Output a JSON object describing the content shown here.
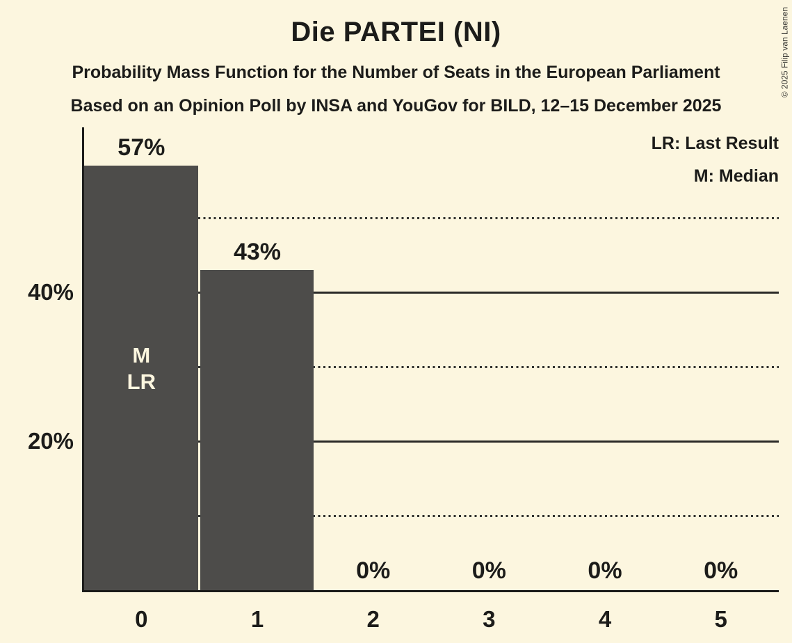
{
  "title": "Die PARTEI (NI)",
  "subtitle1": "Probability Mass Function for the Number of Seats in the European Parliament",
  "subtitle2": "Based on an Opinion Poll by INSA and YouGov for BILD, 12–15 December 2025",
  "legend": {
    "lr": "LR: Last Result",
    "m": "M: Median"
  },
  "copyright": "© 2025 Filip van Laenen",
  "colors": {
    "background": "#FCF6DF",
    "bar": "#4D4C4A",
    "text": "#1C1C1A",
    "bar_label": "#FCF6DF"
  },
  "chart_data": {
    "type": "bar",
    "title": "Die PARTEI (NI)",
    "categories": [
      "0",
      "1",
      "2",
      "3",
      "4",
      "5"
    ],
    "values": [
      57,
      43,
      0,
      0,
      0,
      0
    ],
    "value_labels": [
      "57%",
      "43%",
      "0%",
      "0%",
      "0%",
      "0%"
    ],
    "bar_annotations": [
      [
        "M",
        "LR"
      ],
      [],
      [],
      [],
      [],
      []
    ],
    "ytick_labels": [
      {
        "value": 20,
        "label": "20%"
      },
      {
        "value": 40,
        "label": "40%"
      }
    ],
    "gridlines": {
      "solid": [
        20,
        40
      ],
      "dotted": [
        10,
        30,
        50
      ]
    },
    "ylim": [
      0,
      62
    ],
    "xlabel": "",
    "ylabel": "",
    "grid": "horizontal-only",
    "legend_position": "top-right"
  }
}
